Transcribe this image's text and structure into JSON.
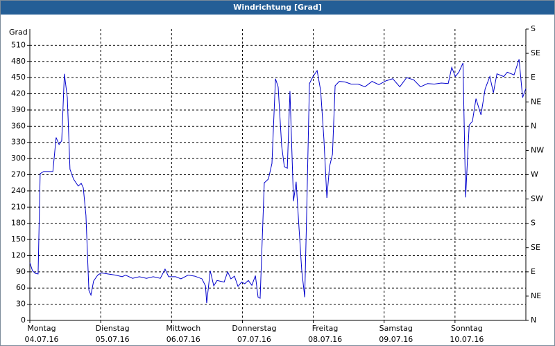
{
  "chart_data": {
    "type": "line",
    "title": "Windrichtung [Grad]",
    "y_label": "Grad",
    "x": [
      0,
      0.9,
      1.9,
      2.8,
      3.5,
      4.7,
      7.8,
      8.9,
      9.9,
      10.8,
      11.7,
      12.7,
      13.6,
      14.8,
      16.4,
      17.4,
      18.1,
      19.0,
      20.0,
      20.7,
      21.6,
      23.0,
      24.2,
      26.6,
      28.9,
      31.3,
      32.4,
      34.8,
      37.1,
      39.5,
      41.8,
      44.2,
      45.8,
      47.0,
      49.4,
      51.2,
      53.6,
      55.9,
      58.3,
      59.5,
      59.9,
      61.1,
      62.3,
      63.4,
      65.8,
      67.0,
      68.1,
      69.3,
      70.5,
      71.7,
      72.8,
      74.0,
      75.2,
      76.4,
      77.3,
      78.0,
      79.4,
      80.8,
      82.0,
      83.2,
      84.1,
      85.3,
      86.2,
      87.2,
      88.1,
      89.3,
      90.2,
      91.2,
      92.1,
      93.1,
      93.8,
      94.7,
      95.9,
      97.3,
      98.5,
      99.6,
      100.6,
      101.5,
      102.5,
      103.4,
      104.8,
      106.7,
      108.8,
      111.2,
      113.5,
      115.9,
      118.2,
      120.6,
      122.9,
      125.3,
      127.6,
      130.0,
      132.3,
      134.7,
      137.0,
      139.4,
      141.7,
      142.9,
      144.1,
      145.3,
      146.7,
      147.6,
      148.8,
      149.9,
      151.1,
      152.8,
      154.2,
      155.8,
      157.0,
      158.2,
      160.5,
      161.7,
      164.0,
      165.7,
      166.9,
      168
    ],
    "series": [
      {
        "name": "Windrichtung",
        "color": "#0000cc",
        "values": [
          107,
          92,
          87,
          86,
          272,
          276,
          276,
          339,
          326,
          333,
          457,
          413,
          280,
          262,
          249,
          254,
          246,
          195,
          56,
          47,
          73,
          84,
          88,
          86,
          84,
          81,
          84,
          78,
          81,
          78,
          81,
          78,
          95,
          81,
          81,
          77,
          84,
          82,
          77,
          64,
          32,
          92,
          64,
          74,
          71,
          90,
          77,
          82,
          63,
          71,
          68,
          74,
          65,
          83,
          43,
          41,
          255,
          262,
          291,
          448,
          433,
          323,
          285,
          282,
          425,
          221,
          257,
          169,
          92,
          43,
          208,
          439,
          452,
          463,
          426,
          336,
          227,
          285,
          308,
          435,
          443,
          442,
          438,
          438,
          433,
          443,
          437,
          444,
          448,
          433,
          450,
          446,
          433,
          439,
          438,
          440,
          439,
          469,
          452,
          460,
          477,
          228,
          362,
          369,
          411,
          381,
          429,
          452,
          422,
          457,
          452,
          460,
          455,
          484,
          413,
          430
        ]
      }
    ],
    "xlim": [
      0,
      168
    ],
    "xticks": [
      {
        "value": 0,
        "label": [
          "Montag",
          "04.07.16"
        ]
      },
      {
        "value": 24,
        "label": [
          "Dienstag",
          "05.07.16"
        ]
      },
      {
        "value": 48,
        "label": [
          "Mittwoch",
          "06.07.16"
        ]
      },
      {
        "value": 72,
        "label": [
          "Donnerstag",
          "07.07.16"
        ]
      },
      {
        "value": 96,
        "label": [
          "Freitag",
          "08.07.16"
        ]
      },
      {
        "value": 120,
        "label": [
          "Samstag",
          "09.07.16"
        ]
      },
      {
        "value": 144,
        "label": [
          "Sonntag",
          "10.07.16"
        ]
      }
    ],
    "ylim": [
      0,
      540
    ],
    "yticks": [
      0,
      30,
      60,
      90,
      120,
      150,
      180,
      210,
      240,
      270,
      300,
      330,
      360,
      390,
      420,
      450,
      480,
      510
    ],
    "y2lim": [
      0,
      540
    ],
    "y2ticks": [
      {
        "value": 0,
        "label": "N"
      },
      {
        "value": 45,
        "label": "NE"
      },
      {
        "value": 90,
        "label": "E"
      },
      {
        "value": 135,
        "label": "SE"
      },
      {
        "value": 180,
        "label": "S"
      },
      {
        "value": 225,
        "label": "SW"
      },
      {
        "value": 270,
        "label": "W"
      },
      {
        "value": 315,
        "label": "NW"
      },
      {
        "value": 360,
        "label": "N"
      },
      {
        "value": 405,
        "label": "NE"
      },
      {
        "value": 450,
        "label": "E"
      },
      {
        "value": 495,
        "label": "SE"
      },
      {
        "value": 540,
        "label": "S"
      }
    ],
    "grid": true
  }
}
